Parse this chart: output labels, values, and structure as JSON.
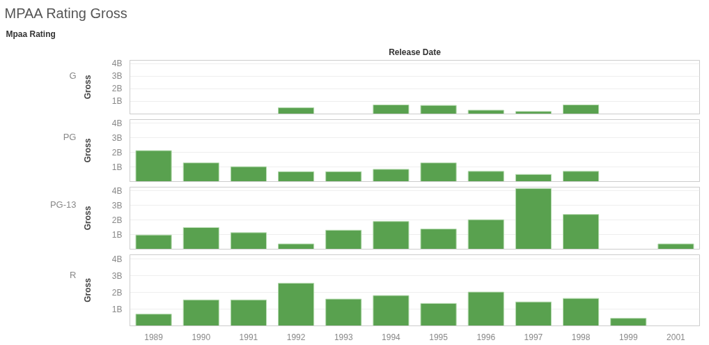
{
  "chart_data": [
    {
      "type": "bar",
      "title": "MPAA Rating Gross",
      "annotations": [
        "Mpaa Rating"
      ],
      "xlabel": "Release Date",
      "subtitle": "G",
      "ylabel": "Gross",
      "categories": [
        "1989",
        "1990",
        "1991",
        "1992",
        "1993",
        "1994",
        "1995",
        "1996",
        "1997",
        "1998",
        "1999",
        "2001"
      ],
      "values": [
        null,
        null,
        null,
        0.49,
        null,
        0.72,
        0.68,
        0.3,
        0.2,
        0.72,
        null,
        null
      ],
      "color": "#59a14f",
      "ylim": [
        0,
        4.25
      ],
      "yticks": [
        {
          "value": 1,
          "label": "1B"
        },
        {
          "value": 2,
          "label": "2B"
        },
        {
          "value": 3,
          "label": "3B"
        },
        {
          "value": 4,
          "label": "4B"
        }
      ],
      "grid": "y",
      "tick_labels": "y"
    },
    {
      "type": "bar",
      "subtitle": "PG",
      "ylabel": "Gross",
      "categories": [
        "1989",
        "1990",
        "1991",
        "1992",
        "1993",
        "1994",
        "1995",
        "1996",
        "1997",
        "1998",
        "1999",
        "2001"
      ],
      "values": [
        2.12,
        1.28,
        1.02,
        0.68,
        0.68,
        0.84,
        1.28,
        0.7,
        0.49,
        0.7,
        null,
        null
      ],
      "color": "#59a14f",
      "ylim": [
        0,
        4.25
      ],
      "yticks": [
        {
          "value": 1,
          "label": "1B"
        },
        {
          "value": 2,
          "label": "2B"
        },
        {
          "value": 3,
          "label": "3B"
        },
        {
          "value": 4,
          "label": "4B"
        }
      ],
      "grid": "y",
      "tick_labels": "y"
    },
    {
      "type": "bar",
      "subtitle": "PG-13",
      "ylabel": "Gross",
      "categories": [
        "1989",
        "1990",
        "1991",
        "1992",
        "1993",
        "1994",
        "1995",
        "1996",
        "1997",
        "1998",
        "1999",
        "2001"
      ],
      "values": [
        0.97,
        1.48,
        1.13,
        0.36,
        1.3,
        1.9,
        1.38,
        2.02,
        4.15,
        2.38,
        null,
        0.36
      ],
      "color": "#59a14f",
      "ylim": [
        0,
        4.25
      ],
      "yticks": [
        {
          "value": 1,
          "label": "1B"
        },
        {
          "value": 2,
          "label": "2B"
        },
        {
          "value": 3,
          "label": "3B"
        },
        {
          "value": 4,
          "label": "4B"
        }
      ],
      "grid": "y",
      "tick_labels": "y"
    },
    {
      "type": "bar",
      "subtitle": "R",
      "ylabel": "Gross",
      "categories": [
        "1989",
        "1990",
        "1991",
        "1992",
        "1993",
        "1994",
        "1995",
        "1996",
        "1997",
        "1998",
        "1999",
        "2001"
      ],
      "values": [
        0.7,
        1.55,
        1.55,
        2.55,
        1.6,
        1.81,
        1.34,
        2.02,
        1.43,
        1.64,
        0.45,
        null
      ],
      "color": "#59a14f",
      "ylim": [
        0,
        4.25
      ],
      "yticks": [
        {
          "value": 1,
          "label": "1B"
        },
        {
          "value": 2,
          "label": "2B"
        },
        {
          "value": 3,
          "label": "3B"
        },
        {
          "value": 4,
          "label": "4B"
        }
      ],
      "grid": "y"
    }
  ]
}
